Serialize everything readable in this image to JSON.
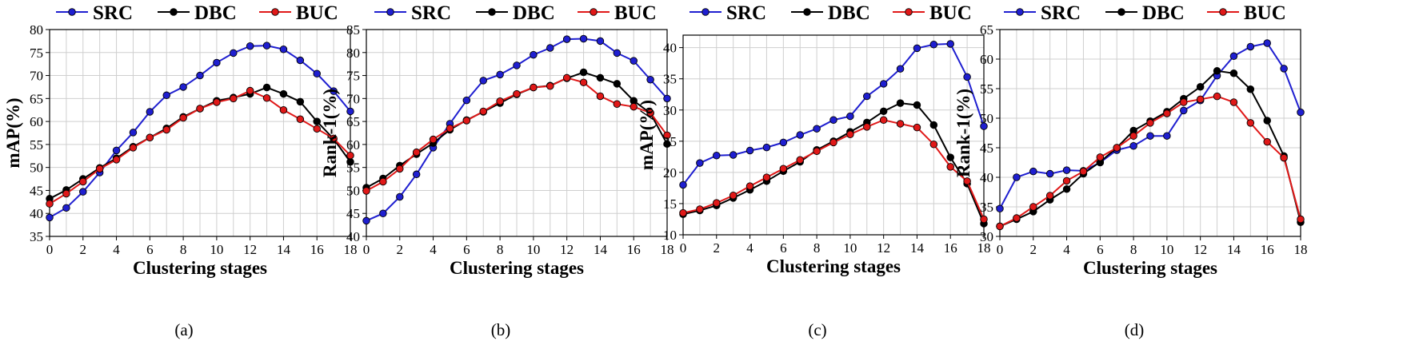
{
  "chart_data": [
    {
      "type": "line",
      "caption": "(a)",
      "xlabel": "Clustering stages",
      "ylabel": "mAP(%)",
      "xlim": [
        0,
        18
      ],
      "ylim": [
        35,
        80
      ],
      "xticks": [
        0,
        2,
        4,
        6,
        8,
        10,
        12,
        14,
        16,
        18
      ],
      "yticks": [
        35,
        40,
        45,
        50,
        55,
        60,
        65,
        70,
        75,
        80
      ],
      "grid": true,
      "legend": "top, horizontal, above plot",
      "x": [
        0,
        1,
        2,
        3,
        4,
        5,
        6,
        7,
        8,
        9,
        10,
        11,
        12,
        13,
        14,
        15,
        16,
        17,
        18
      ],
      "series": [
        {
          "name": "SRC",
          "color": "#1f1fd0",
          "values": [
            39.1,
            41.2,
            44.7,
            48.9,
            53.7,
            57.6,
            62.1,
            65.7,
            67.5,
            70.0,
            72.8,
            74.9,
            76.4,
            76.5,
            75.7,
            73.3,
            70.4,
            66.6,
            62.2
          ]
        },
        {
          "name": "DBC",
          "color": "#000000",
          "values": [
            43.2,
            45.1,
            47.5,
            49.9,
            52.0,
            54.5,
            56.5,
            58.5,
            61.0,
            62.8,
            64.5,
            65.2,
            66.0,
            67.4,
            66.0,
            64.3,
            60.0,
            56.2,
            51.2
          ]
        },
        {
          "name": "BUC",
          "color": "#e01818",
          "values": [
            42.1,
            44.3,
            46.9,
            49.7,
            51.7,
            54.3,
            56.5,
            58.2,
            60.8,
            62.8,
            64.2,
            65.0,
            66.7,
            65.1,
            62.5,
            60.5,
            58.4,
            56.3,
            52.6
          ]
        }
      ]
    },
    {
      "type": "line",
      "caption": "(b)",
      "xlabel": "Clustering stages",
      "ylabel": "Rank-1(%)",
      "xlim": [
        0,
        18
      ],
      "ylim": [
        40,
        85
      ],
      "xticks": [
        0,
        2,
        4,
        6,
        8,
        10,
        12,
        14,
        16,
        18
      ],
      "yticks": [
        40,
        45,
        50,
        55,
        60,
        65,
        70,
        75,
        80,
        85
      ],
      "grid": true,
      "legend": "top, horizontal, above plot",
      "x": [
        0,
        1,
        2,
        3,
        4,
        5,
        6,
        7,
        8,
        9,
        10,
        11,
        12,
        13,
        14,
        15,
        16,
        17,
        18
      ],
      "series": [
        {
          "name": "SRC",
          "color": "#1f1fd0",
          "values": [
            43.4,
            45.0,
            48.6,
            53.5,
            59.3,
            64.5,
            69.6,
            73.9,
            75.2,
            77.2,
            79.5,
            81.0,
            82.9,
            83.0,
            82.5,
            79.9,
            78.2,
            74.1,
            70.0
          ]
        },
        {
          "name": "DBC",
          "color": "#000000",
          "values": [
            50.6,
            52.6,
            55.4,
            57.9,
            60.3,
            63.2,
            65.3,
            67.1,
            69.0,
            70.9,
            72.4,
            72.8,
            74.4,
            75.7,
            74.5,
            73.2,
            69.5,
            66.8,
            60.1
          ]
        },
        {
          "name": "BUC",
          "color": "#e01818",
          "values": [
            49.9,
            51.9,
            54.7,
            58.3,
            61.1,
            63.5,
            65.2,
            67.2,
            69.4,
            71.0,
            72.4,
            72.7,
            74.5,
            73.5,
            70.5,
            68.8,
            68.2,
            66.9,
            62.0
          ]
        }
      ]
    },
    {
      "type": "line",
      "caption": "(c)",
      "xlabel": "Clustering stages",
      "ylabel": "mAP(%)",
      "xlim": [
        0,
        18
      ],
      "ylim": [
        10,
        42
      ],
      "xticks": [
        0,
        2,
        4,
        6,
        8,
        10,
        12,
        14,
        16,
        18
      ],
      "yticks": [
        10,
        15,
        20,
        25,
        30,
        35,
        40
      ],
      "grid": true,
      "legend": "top, horizontal, above plot",
      "x": [
        0,
        1,
        2,
        3,
        4,
        5,
        6,
        7,
        8,
        9,
        10,
        11,
        12,
        13,
        14,
        15,
        16,
        17,
        18
      ],
      "series": [
        {
          "name": "SRC",
          "color": "#1f1fd0",
          "values": [
            18.0,
            21.5,
            22.7,
            22.8,
            23.5,
            24.0,
            24.8,
            26.0,
            27.0,
            28.4,
            29.0,
            32.2,
            34.2,
            36.6,
            39.9,
            40.5,
            40.6,
            35.3,
            27.4
          ]
        },
        {
          "name": "DBC",
          "color": "#000000",
          "values": [
            13.3,
            13.9,
            14.7,
            15.9,
            17.2,
            18.6,
            20.2,
            21.7,
            23.6,
            25.0,
            26.5,
            28.0,
            29.8,
            31.1,
            30.8,
            27.6,
            22.4,
            18.2,
            11.8
          ]
        },
        {
          "name": "BUC",
          "color": "#e01818",
          "values": [
            13.5,
            14.1,
            15.1,
            16.3,
            17.8,
            19.2,
            20.6,
            22.0,
            23.4,
            24.8,
            26.1,
            27.3,
            28.4,
            27.8,
            27.2,
            24.5,
            20.9,
            18.6,
            12.5
          ]
        }
      ]
    },
    {
      "type": "line",
      "caption": "(d)",
      "xlabel": "Clustering stages",
      "ylabel": "Rank-1(%)",
      "xlim": [
        0,
        18
      ],
      "ylim": [
        30,
        65
      ],
      "xticks": [
        0,
        2,
        4,
        6,
        8,
        10,
        12,
        14,
        16,
        18
      ],
      "yticks": [
        30,
        35,
        40,
        45,
        50,
        55,
        60,
        65
      ],
      "grid": true,
      "legend": "top, horizontal, above plot",
      "x": [
        0,
        1,
        2,
        3,
        4,
        5,
        6,
        7,
        8,
        9,
        10,
        11,
        12,
        13,
        14,
        15,
        16,
        17,
        18
      ],
      "series": [
        {
          "name": "SRC",
          "color": "#1f1fd0",
          "values": [
            34.7,
            40.0,
            41.0,
            40.6,
            41.2,
            41.1,
            42.5,
            44.6,
            45.3,
            47.0,
            47.0,
            51.3,
            53.0,
            57.2,
            60.5,
            62.1,
            62.7,
            58.4,
            51.0
          ]
        },
        {
          "name": "DBC",
          "color": "#000000",
          "values": [
            31.7,
            32.9,
            34.2,
            36.2,
            38.0,
            40.6,
            42.6,
            45.0,
            47.9,
            49.5,
            51.1,
            53.3,
            55.3,
            58.0,
            57.6,
            54.9,
            49.6,
            43.6,
            32.4
          ]
        },
        {
          "name": "BUC",
          "color": "#e01818",
          "values": [
            31.7,
            33.1,
            35.0,
            36.9,
            39.4,
            41.0,
            43.4,
            45.0,
            47.0,
            49.2,
            50.8,
            52.7,
            53.2,
            53.7,
            52.7,
            49.2,
            46.0,
            43.3,
            32.9
          ]
        }
      ]
    }
  ]
}
